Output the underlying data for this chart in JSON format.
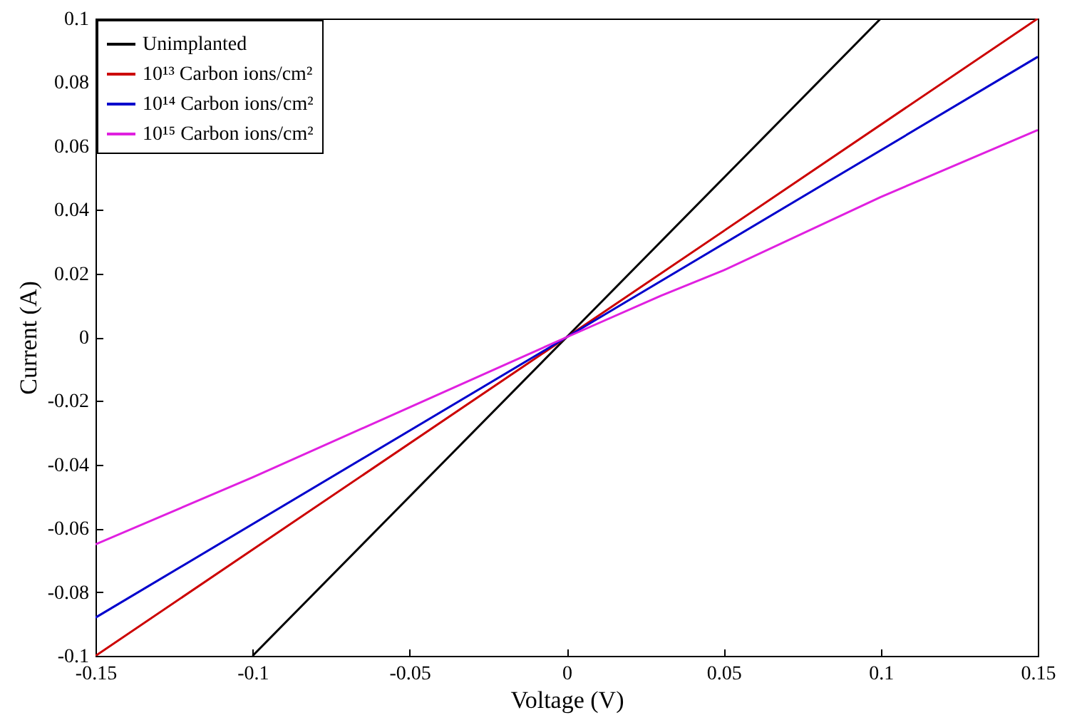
{
  "chart_data": {
    "type": "line",
    "xlabel": "Voltage (V)",
    "ylabel": "Current (A)",
    "xlim": [
      -0.15,
      0.15
    ],
    "xticks": [
      -0.15,
      -0.1,
      -0.05,
      0,
      0.05,
      0.1,
      0.15
    ],
    "ylim": [
      -0.1,
      0.1
    ],
    "yticks": [
      -0.1,
      -0.08,
      -0.06,
      -0.04,
      -0.02,
      0,
      0.02,
      0.04,
      0.06,
      0.08,
      0.1
    ],
    "grid": false,
    "legend": "top left",
    "line_style": "solid",
    "marker": "none",
    "series": [
      {
        "name": "Unimplanted",
        "color": "#000000",
        "x": [
          -0.1,
          0,
          0.1
        ],
        "values": [
          -0.1,
          0,
          0.1
        ]
      },
      {
        "name": "10¹³ Carbon ions/cm²",
        "color": "#cc0000",
        "x": [
          -0.15,
          0,
          0.15
        ],
        "values": [
          -0.1,
          0,
          0.1
        ]
      },
      {
        "name": "10¹⁴ Carbon ions/cm²",
        "color": "#0000cc",
        "x": [
          -0.15,
          0,
          0.15
        ],
        "values": [
          -0.088,
          0,
          0.088
        ]
      },
      {
        "name": "10¹⁵ Carbon ions/cm²",
        "color": "#e020e0",
        "x": [
          -0.15,
          -0.1,
          -0.05,
          0,
          0.03,
          0.05,
          0.1,
          0.15
        ],
        "values": [
          -0.065,
          -0.044,
          -0.022,
          0,
          0.013,
          0.021,
          0.044,
          0.065
        ]
      }
    ]
  }
}
